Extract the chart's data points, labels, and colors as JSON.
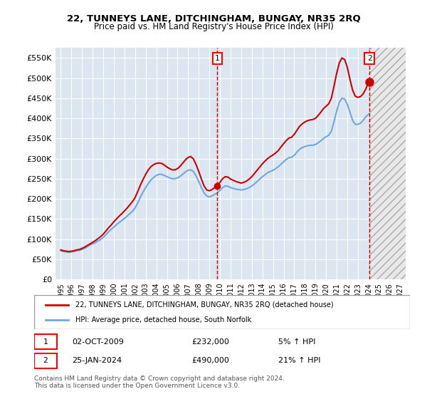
{
  "title": "22, TUNNEYS LANE, DITCHINGHAM, BUNGAY, NR35 2RQ",
  "subtitle": "Price paid vs. HM Land Registry's House Price Index (HPI)",
  "legend_line1": "22, TUNNEYS LANE, DITCHINGHAM, BUNGAY, NR35 2RQ (detached house)",
  "legend_line2": "HPI: Average price, detached house, South Norfolk",
  "annotation1_label": "1",
  "annotation1_date": "02-OCT-2009",
  "annotation1_price": "£232,000",
  "annotation1_hpi": "5% ↑ HPI",
  "annotation1_year": 2009.75,
  "annotation1_value": 232000,
  "annotation2_label": "2",
  "annotation2_date": "25-JAN-2024",
  "annotation2_price": "£490,000",
  "annotation2_hpi": "21% ↑ HPI",
  "annotation2_year": 2024.08,
  "annotation2_value": 490000,
  "hpi_color": "#6fa8dc",
  "price_color": "#cc0000",
  "background_color": "#dce6f1",
  "plot_bg_color": "#dce6f1",
  "hatch_color": "#c0c0c0",
  "ylim": [
    0,
    575000
  ],
  "yticks": [
    0,
    50000,
    100000,
    150000,
    200000,
    250000,
    300000,
    350000,
    400000,
    450000,
    500000,
    550000
  ],
  "xlabel_years": [
    1995,
    1996,
    1997,
    1998,
    1999,
    2000,
    2001,
    2002,
    2003,
    2004,
    2005,
    2006,
    2007,
    2008,
    2009,
    2010,
    2011,
    2012,
    2013,
    2014,
    2015,
    2016,
    2017,
    2018,
    2019,
    2020,
    2021,
    2022,
    2023,
    2024,
    2025,
    2026,
    2027
  ],
  "footer": "Contains HM Land Registry data © Crown copyright and database right 2024.\nThis data is licensed under the Open Government Licence v3.0.",
  "hpi_data_x": [
    1995.0,
    1995.25,
    1995.5,
    1995.75,
    1996.0,
    1996.25,
    1996.5,
    1996.75,
    1997.0,
    1997.25,
    1997.5,
    1997.75,
    1998.0,
    1998.25,
    1998.5,
    1998.75,
    1999.0,
    1999.25,
    1999.5,
    1999.75,
    2000.0,
    2000.25,
    2000.5,
    2000.75,
    2001.0,
    2001.25,
    2001.5,
    2001.75,
    2002.0,
    2002.25,
    2002.5,
    2002.75,
    2003.0,
    2003.25,
    2003.5,
    2003.75,
    2004.0,
    2004.25,
    2004.5,
    2004.75,
    2005.0,
    2005.25,
    2005.5,
    2005.75,
    2006.0,
    2006.25,
    2006.5,
    2006.75,
    2007.0,
    2007.25,
    2007.5,
    2007.75,
    2008.0,
    2008.25,
    2008.5,
    2008.75,
    2009.0,
    2009.25,
    2009.5,
    2009.75,
    2010.0,
    2010.25,
    2010.5,
    2010.75,
    2011.0,
    2011.25,
    2011.5,
    2011.75,
    2012.0,
    2012.25,
    2012.5,
    2012.75,
    2013.0,
    2013.25,
    2013.5,
    2013.75,
    2014.0,
    2014.25,
    2014.5,
    2014.75,
    2015.0,
    2015.25,
    2015.5,
    2015.75,
    2016.0,
    2016.25,
    2016.5,
    2016.75,
    2017.0,
    2017.25,
    2017.5,
    2017.75,
    2018.0,
    2018.25,
    2018.5,
    2018.75,
    2019.0,
    2019.25,
    2019.5,
    2019.75,
    2020.0,
    2020.25,
    2020.5,
    2020.75,
    2021.0,
    2021.25,
    2021.5,
    2021.75,
    2022.0,
    2022.25,
    2022.5,
    2022.75,
    2023.0,
    2023.25,
    2023.5,
    2023.75,
    2024.0
  ],
  "hpi_data_y": [
    71000,
    69000,
    68000,
    67000,
    68000,
    69000,
    71000,
    72000,
    74000,
    77000,
    81000,
    85000,
    88000,
    91000,
    95000,
    99000,
    104000,
    111000,
    118000,
    124000,
    130000,
    136000,
    141000,
    146000,
    151000,
    157000,
    163000,
    169000,
    177000,
    190000,
    204000,
    217000,
    228000,
    238000,
    247000,
    253000,
    258000,
    261000,
    261000,
    258000,
    255000,
    252000,
    250000,
    250000,
    252000,
    256000,
    261000,
    267000,
    271000,
    272000,
    268000,
    257000,
    243000,
    228000,
    215000,
    207000,
    205000,
    207000,
    211000,
    215000,
    221000,
    228000,
    232000,
    231000,
    228000,
    226000,
    224000,
    223000,
    222000,
    223000,
    225000,
    228000,
    232000,
    237000,
    243000,
    249000,
    255000,
    260000,
    265000,
    268000,
    271000,
    275000,
    280000,
    286000,
    292000,
    298000,
    302000,
    303000,
    308000,
    316000,
    323000,
    327000,
    330000,
    332000,
    333000,
    333000,
    335000,
    339000,
    344000,
    350000,
    354000,
    358000,
    368000,
    392000,
    418000,
    440000,
    450000,
    448000,
    435000,
    415000,
    395000,
    385000,
    385000,
    388000,
    395000,
    404000,
    410000
  ],
  "price_data_x": [
    1995.0,
    1995.25,
    1995.5,
    1995.75,
    1996.0,
    1996.25,
    1996.5,
    1996.75,
    1997.0,
    1997.25,
    1997.5,
    1997.75,
    1998.0,
    1998.25,
    1998.5,
    1998.75,
    1999.0,
    1999.25,
    1999.5,
    1999.75,
    2000.0,
    2000.25,
    2000.5,
    2000.75,
    2001.0,
    2001.25,
    2001.5,
    2001.75,
    2002.0,
    2002.25,
    2002.5,
    2002.75,
    2003.0,
    2003.25,
    2003.5,
    2003.75,
    2004.0,
    2004.25,
    2004.5,
    2004.75,
    2005.0,
    2005.25,
    2005.5,
    2005.75,
    2006.0,
    2006.25,
    2006.5,
    2006.75,
    2007.0,
    2007.25,
    2007.5,
    2007.75,
    2008.0,
    2008.25,
    2008.5,
    2008.75,
    2009.0,
    2009.25,
    2009.5,
    2009.75,
    2010.0,
    2010.25,
    2010.5,
    2010.75,
    2011.0,
    2011.25,
    2011.5,
    2011.75,
    2012.0,
    2012.25,
    2012.5,
    2012.75,
    2013.0,
    2013.25,
    2013.5,
    2013.75,
    2014.0,
    2014.25,
    2014.5,
    2014.75,
    2015.0,
    2015.25,
    2015.5,
    2015.75,
    2016.0,
    2016.25,
    2016.5,
    2016.75,
    2017.0,
    2017.25,
    2017.5,
    2017.75,
    2018.0,
    2018.25,
    2018.5,
    2018.75,
    2019.0,
    2019.25,
    2019.5,
    2019.75,
    2020.0,
    2020.25,
    2020.5,
    2020.75,
    2021.0,
    2021.25,
    2021.5,
    2021.75,
    2022.0,
    2022.25,
    2022.5,
    2022.75,
    2023.0,
    2023.25,
    2023.5,
    2023.75,
    2024.0
  ],
  "price_data_y": [
    73000,
    71000,
    70000,
    69000,
    70000,
    71000,
    73000,
    74000,
    77000,
    80000,
    84000,
    88000,
    92000,
    96000,
    101000,
    106000,
    112000,
    120000,
    128000,
    135000,
    143000,
    150000,
    157000,
    163000,
    170000,
    177000,
    185000,
    193000,
    203000,
    218000,
    234000,
    248000,
    261000,
    272000,
    280000,
    285000,
    288000,
    289000,
    288000,
    284000,
    279000,
    275000,
    272000,
    272000,
    275000,
    281000,
    289000,
    297000,
    303000,
    305000,
    299000,
    285000,
    268000,
    249000,
    232000,
    222000,
    220000,
    223000,
    228000,
    233000,
    241000,
    250000,
    255000,
    254000,
    249000,
    246000,
    243000,
    241000,
    239000,
    241000,
    244000,
    249000,
    255000,
    263000,
    271000,
    279000,
    287000,
    294000,
    300000,
    305000,
    309000,
    314000,
    320000,
    329000,
    337000,
    345000,
    351000,
    353000,
    360000,
    370000,
    380000,
    386000,
    391000,
    394000,
    396000,
    397000,
    400000,
    407000,
    415000,
    424000,
    430000,
    436000,
    450000,
    480000,
    512000,
    538000,
    550000,
    546000,
    527000,
    497000,
    470000,
    455000,
    452000,
    454000,
    461000,
    473000,
    490000
  ]
}
